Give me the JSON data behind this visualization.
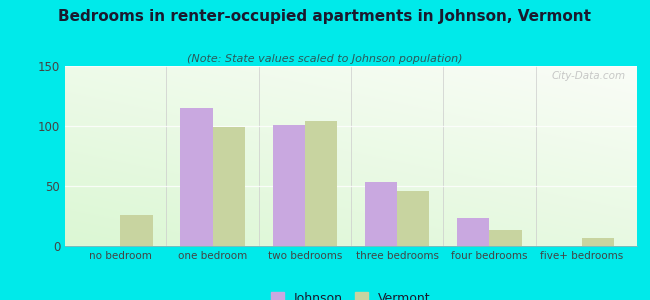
{
  "title": "Bedrooms in renter-occupied apartments in Johnson, Vermont",
  "subtitle": "(Note: State values scaled to Johnson population)",
  "categories": [
    "no bedroom",
    "one bedroom",
    "two bedrooms",
    "three bedrooms",
    "four bedrooms",
    "five+ bedrooms"
  ],
  "johnson_values": [
    0,
    115,
    101,
    53,
    23,
    0
  ],
  "vermont_values": [
    26,
    99,
    104,
    46,
    13,
    7
  ],
  "johnson_color": "#c9a8e0",
  "vermont_color": "#c8d4a0",
  "background_outer": "#00eaea",
  "title_color": "#1a1a2e",
  "subtitle_color": "#2a5a5a",
  "tick_color": "#444444",
  "ylim": [
    0,
    150
  ],
  "yticks": [
    0,
    50,
    100,
    150
  ],
  "bar_width": 0.35,
  "legend_johnson": "Johnson",
  "legend_vermont": "Vermont",
  "watermark": "City-Data.com"
}
